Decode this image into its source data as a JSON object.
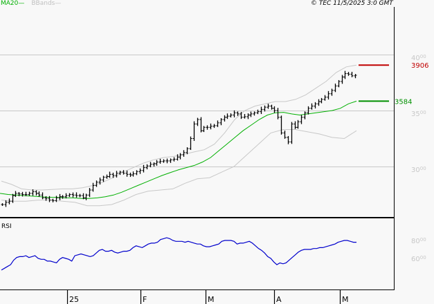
{
  "legend": {
    "ma_label": "MA20",
    "ma_dash": "—",
    "bb_label": "BBands",
    "bb_dash": "—"
  },
  "copyright": "© TEC 11/5/2025 3:0 GMT",
  "colors": {
    "background": "#f8f8f8",
    "price_bars": "#000000",
    "ma20": "#00b000",
    "bbands": "#c8c8c8",
    "rsi": "#0000cc",
    "resistance": "#c00000",
    "support": "#009000",
    "grid": "#c8c8c8"
  },
  "price_axis": {
    "ticks": [
      {
        "main": "40",
        "sup": "00",
        "value": 4000
      },
      {
        "main": "35",
        "sup": "00",
        "value": 3500
      },
      {
        "main": "30",
        "sup": "00",
        "value": 3000
      }
    ]
  },
  "levels": {
    "resistance": {
      "label": "3906",
      "value": 3906
    },
    "support": {
      "label": "3584",
      "value": 3584
    }
  },
  "rsi_panel": {
    "title": "RSI",
    "ticks": [
      {
        "main": "80",
        "sup": "00",
        "value": 80
      },
      {
        "main": "60",
        "sup": "00",
        "value": 60
      }
    ]
  },
  "x_axis": {
    "ticks": [
      {
        "label": "25",
        "x": 97
      },
      {
        "label": "F",
        "x": 203
      },
      {
        "label": "M",
        "x": 297
      },
      {
        "label": "A",
        "x": 396
      },
      {
        "label": "M",
        "x": 491
      }
    ]
  },
  "chart_data": [
    {
      "type": "line",
      "title": "Price (OHLC bars) with MA20 and Bollinger Bands",
      "xlabel": "",
      "ylabel": "",
      "x_tick_labels": [
        "25",
        "F",
        "M",
        "A",
        "M"
      ],
      "ylim": [
        2600,
        4200
      ],
      "grid": true,
      "legend": [
        "MA20",
        "BBands"
      ],
      "annotations": [
        {
          "type": "hline",
          "label": "3906",
          "value": 3906,
          "color": "#c00000"
        },
        {
          "type": "hline",
          "label": "3584",
          "value": 3584,
          "color": "#009000"
        }
      ],
      "series": [
        {
          "name": "Close",
          "values": [
            2660,
            2680,
            2690,
            2740,
            2760,
            2755,
            2750,
            2750,
            2760,
            2775,
            2760,
            2745,
            2720,
            2715,
            2700,
            2695,
            2720,
            2730,
            2730,
            2740,
            2750,
            2745,
            2740,
            2740,
            2720,
            2745,
            2790,
            2830,
            2860,
            2880,
            2905,
            2910,
            2930,
            2920,
            2940,
            2950,
            2940,
            2930,
            2925,
            2935,
            2955,
            2965,
            2990,
            3005,
            3020,
            3025,
            3040,
            3045,
            3050,
            3050,
            3060,
            3065,
            3085,
            3105,
            3125,
            3160,
            3250,
            3380,
            3420,
            3320,
            3350,
            3350,
            3360,
            3365,
            3390,
            3420,
            3440,
            3450,
            3460,
            3480,
            3470,
            3440,
            3445,
            3460,
            3470,
            3480,
            3490,
            3510,
            3530,
            3540,
            3520,
            3500,
            3440,
            3300,
            3260,
            3220,
            3380,
            3350,
            3400,
            3440,
            3480,
            3520,
            3540,
            3560,
            3580,
            3600,
            3620,
            3650,
            3680,
            3720,
            3760,
            3800,
            3830,
            3825,
            3810,
            3815
          ]
        },
        {
          "name": "MA20",
          "values": [
            2760,
            2750,
            2745,
            2740,
            2735,
            2730,
            2725,
            2725,
            2720,
            2720,
            2715,
            2715,
            2720,
            2730,
            2745,
            2770,
            2800,
            2830,
            2860,
            2890,
            2920,
            2945,
            2970,
            2990,
            3010,
            3040,
            3080,
            3140,
            3200,
            3260,
            3320,
            3370,
            3420,
            3460,
            3480,
            3484,
            3470,
            3460,
            3470,
            3480,
            3490,
            3500,
            3520,
            3560,
            3584
          ]
        },
        {
          "name": "BBand Upper",
          "values": [
            2870,
            2840,
            2800,
            2790,
            2790,
            2795,
            2800,
            2800,
            2810,
            2830,
            2860,
            2900,
            2950,
            2990,
            3030,
            3060,
            3080,
            3090,
            3110,
            3130,
            3150,
            3200,
            3300,
            3420,
            3500,
            3540,
            3560,
            3580,
            3580,
            3600,
            3640,
            3700,
            3760,
            3840,
            3890,
            3906
          ]
        },
        {
          "name": "BBand Lower",
          "values": [
            2700,
            2690,
            2690,
            2700,
            2700,
            2690,
            2680,
            2650,
            2650,
            2660,
            2700,
            2750,
            2780,
            2790,
            2800,
            2850,
            2890,
            2900,
            2950,
            3000,
            3100,
            3200,
            3300,
            3330,
            3330,
            3310,
            3290,
            3260,
            3250,
            3320
          ]
        }
      ]
    },
    {
      "type": "line",
      "title": "RSI",
      "ylim": [
        30,
        100
      ],
      "y_tick_labels": [
        "80",
        "60"
      ],
      "series": [
        {
          "name": "RSI",
          "values": [
            47,
            49,
            51,
            53,
            58,
            61,
            62,
            62,
            63,
            61,
            62,
            63,
            60,
            59,
            59,
            57,
            57,
            56,
            55,
            59,
            61,
            60,
            59,
            57,
            63,
            64,
            65,
            64,
            63,
            62,
            63,
            66,
            69,
            70,
            68,
            68,
            69,
            67,
            66,
            67,
            68,
            68,
            69,
            72,
            74,
            73,
            72,
            74,
            76,
            77,
            77,
            78,
            81,
            82,
            83,
            82,
            80,
            79,
            79,
            79,
            78,
            79,
            78,
            77,
            76,
            76,
            74,
            73,
            73,
            74,
            75,
            76,
            79,
            80,
            80,
            80,
            79,
            76,
            77,
            77,
            78,
            79,
            77,
            74,
            71,
            69,
            66,
            62,
            60,
            56,
            53,
            55,
            54,
            55,
            58,
            61,
            64,
            67,
            69,
            70,
            70,
            70,
            71,
            71,
            72,
            72,
            73,
            74,
            75,
            76,
            78,
            79,
            80,
            80,
            79,
            78,
            78
          ]
        }
      ]
    }
  ]
}
